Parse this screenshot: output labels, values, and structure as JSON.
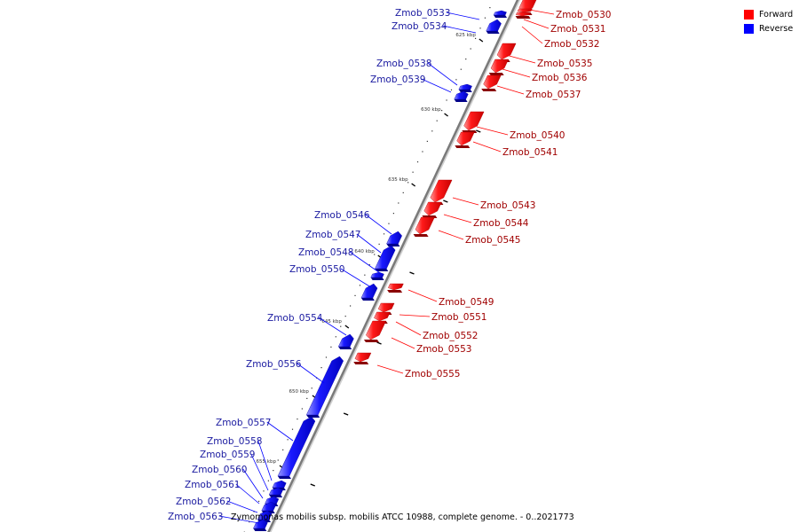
{
  "title": "Zymomonas mobilis subsp. mobilis ATCC 10988, complete genome. - 0..2021773",
  "legend": [
    {
      "label": "Forward",
      "color": "#ff0000"
    },
    {
      "label": "Reverse",
      "color": "#0000ff"
    }
  ],
  "colors": {
    "forward": "#ff0000",
    "reverse": "#0000ff",
    "backbone": "#888888"
  },
  "ticks": [
    {
      "label": "625 kbp"
    },
    {
      "label": "630 kbp"
    },
    {
      "label": "635 kbp"
    },
    {
      "label": "640 kbp"
    },
    {
      "label": "645 kbp"
    },
    {
      "label": "650 kbp"
    },
    {
      "label": "655 kbp"
    }
  ],
  "genes": [
    {
      "name": "Zmob_0530",
      "strand": "forward"
    },
    {
      "name": "Zmob_0531",
      "strand": "forward"
    },
    {
      "name": "Zmob_0532",
      "strand": "forward"
    },
    {
      "name": "Zmob_0533",
      "strand": "reverse"
    },
    {
      "name": "Zmob_0534",
      "strand": "reverse"
    },
    {
      "name": "Zmob_0535",
      "strand": "forward"
    },
    {
      "name": "Zmob_0536",
      "strand": "forward"
    },
    {
      "name": "Zmob_0537",
      "strand": "forward"
    },
    {
      "name": "Zmob_0538",
      "strand": "reverse"
    },
    {
      "name": "Zmob_0539",
      "strand": "reverse"
    },
    {
      "name": "Zmob_0540",
      "strand": "forward"
    },
    {
      "name": "Zmob_0541",
      "strand": "forward"
    },
    {
      "name": "Zmob_0543",
      "strand": "forward"
    },
    {
      "name": "Zmob_0544",
      "strand": "forward"
    },
    {
      "name": "Zmob_0545",
      "strand": "forward"
    },
    {
      "name": "Zmob_0546",
      "strand": "reverse"
    },
    {
      "name": "Zmob_0547",
      "strand": "reverse"
    },
    {
      "name": "Zmob_0548",
      "strand": "reverse"
    },
    {
      "name": "Zmob_0549",
      "strand": "forward"
    },
    {
      "name": "Zmob_0550",
      "strand": "reverse"
    },
    {
      "name": "Zmob_0551",
      "strand": "forward"
    },
    {
      "name": "Zmob_0552",
      "strand": "forward"
    },
    {
      "name": "Zmob_0553",
      "strand": "forward"
    },
    {
      "name": "Zmob_0554",
      "strand": "reverse"
    },
    {
      "name": "Zmob_0555",
      "strand": "forward"
    },
    {
      "name": "Zmob_0556",
      "strand": "reverse"
    },
    {
      "name": "Zmob_0557",
      "strand": "reverse"
    },
    {
      "name": "Zmob_0558",
      "strand": "reverse"
    },
    {
      "name": "Zmob_0559",
      "strand": "reverse"
    },
    {
      "name": "Zmob_0560",
      "strand": "reverse"
    },
    {
      "name": "Zmob_0561",
      "strand": "reverse"
    },
    {
      "name": "Zmob_0562",
      "strand": "reverse"
    },
    {
      "name": "Zmob_0563",
      "strand": "reverse"
    }
  ]
}
